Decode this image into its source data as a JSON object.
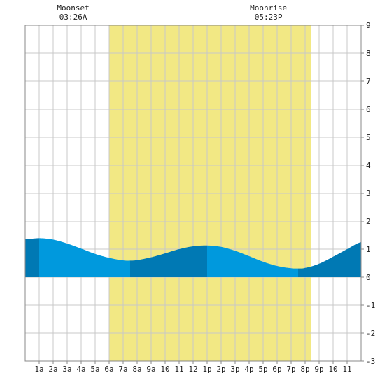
{
  "chart_data": {
    "type": "area",
    "title": "",
    "xlabel": "",
    "ylabel": "",
    "xlim": [
      0,
      24
    ],
    "ylim": [
      -3,
      9
    ],
    "grid": true,
    "x_tick_labels": [
      "1a",
      "2a",
      "3a",
      "4a",
      "5a",
      "6a",
      "7a",
      "8a",
      "9a",
      "10",
      "11",
      "12",
      "1p",
      "2p",
      "3p",
      "4p",
      "5p",
      "6p",
      "7p",
      "8p",
      "9p",
      "10",
      "11"
    ],
    "y_tick_labels": [
      "-3",
      "-2",
      "-1",
      "0",
      "1",
      "2",
      "3",
      "4",
      "5",
      "6",
      "7",
      "8",
      "9"
    ],
    "daylight_hours": [
      6.0,
      20.4
    ],
    "series": [
      {
        "x": [
          0,
          1,
          2,
          3,
          4,
          5,
          6,
          7,
          7.5,
          8,
          9,
          10,
          11,
          12,
          13,
          14,
          15,
          16,
          17,
          18,
          19,
          19.5,
          20,
          21,
          22,
          23,
          24
        ],
        "values": [
          1.35,
          1.39,
          1.34,
          1.2,
          1.02,
          0.83,
          0.69,
          0.6,
          0.59,
          0.61,
          0.71,
          0.85,
          1.0,
          1.1,
          1.13,
          1.08,
          0.94,
          0.75,
          0.55,
          0.4,
          0.32,
          0.31,
          0.33,
          0.48,
          0.73,
          1.0,
          1.25
        ]
      }
    ],
    "bands": [
      {
        "from": 0,
        "to": 1,
        "tone": "dark"
      },
      {
        "from": 1,
        "to": 7.5,
        "tone": "light"
      },
      {
        "from": 7.5,
        "to": 13,
        "tone": "dark"
      },
      {
        "from": 13,
        "to": 19.5,
        "tone": "light"
      },
      {
        "from": 19.5,
        "to": 24,
        "tone": "dark"
      }
    ],
    "annotations": [
      {
        "title": "Moonset",
        "time": "03:26A",
        "x": 3.43
      },
      {
        "title": "Moonrise",
        "time": "05:23P",
        "x": 17.38
      }
    ],
    "colors": {
      "daylight": "#f2e884",
      "water_light": "#0099dd",
      "water_dark": "#0079b4",
      "grid": "#c8c8c8",
      "frame": "#888888"
    }
  }
}
